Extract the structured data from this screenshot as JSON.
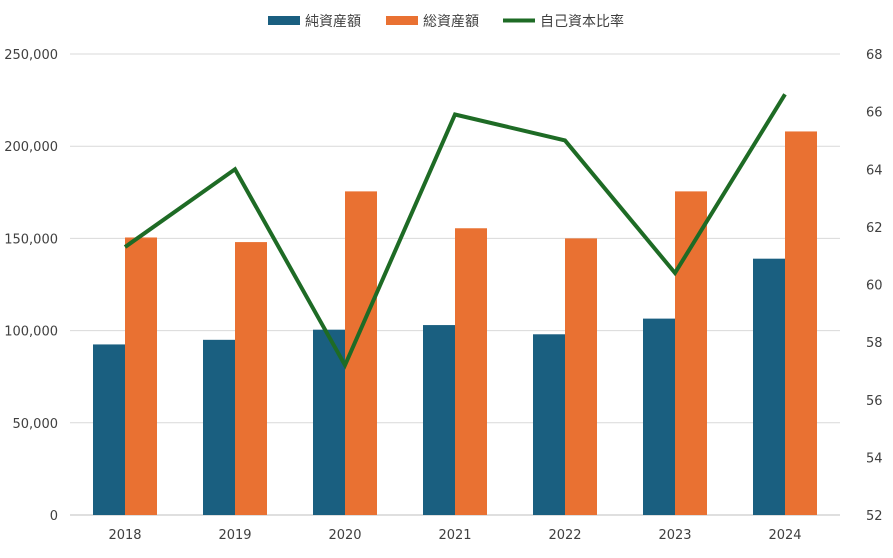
{
  "chart_data": {
    "type": "bar",
    "categories": [
      "2018",
      "2019",
      "2020",
      "2021",
      "2022",
      "2023",
      "2024"
    ],
    "series": [
      {
        "name": "純資産額",
        "kind": "bar",
        "axis": "left",
        "color": "#1a5f80",
        "values": [
          92500,
          95000,
          100500,
          103000,
          98000,
          106500,
          139000
        ]
      },
      {
        "name": "総資産額",
        "kind": "bar",
        "axis": "left",
        "color": "#e97132",
        "values": [
          150500,
          148000,
          175500,
          155500,
          150000,
          175500,
          208000
        ]
      },
      {
        "name": "自己資本比率",
        "kind": "line",
        "axis": "right",
        "color": "#1e6b25",
        "values": [
          61.3,
          64.0,
          57.2,
          65.9,
          65.0,
          60.4,
          66.6
        ]
      }
    ],
    "y_left": {
      "min": 0,
      "max": 250000,
      "step": 50000,
      "ticks": [
        "0",
        "50,000",
        "100,000",
        "150,000",
        "200,000",
        "250,000"
      ]
    },
    "y_right": {
      "min": 52,
      "max": 68,
      "step": 2,
      "ticks": [
        "52",
        "54",
        "56",
        "58",
        "60",
        "62",
        "64",
        "66",
        "68"
      ]
    },
    "grid": true,
    "legend": "top-center"
  }
}
